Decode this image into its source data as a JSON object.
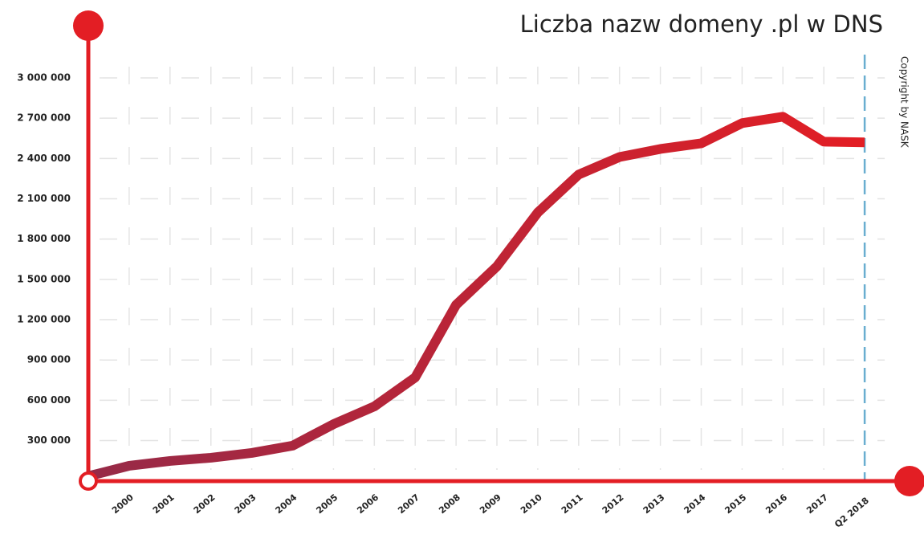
{
  "chart_data": {
    "type": "line",
    "title": "Liczba nazw domeny .pl w DNS",
    "annotation": "Copyright by NASK",
    "categories": [
      null,
      "2000",
      "2001",
      "2002",
      "2003",
      "2004",
      "2005",
      "2006",
      "2007",
      "2008",
      "2009",
      "2010",
      "2011",
      "2012",
      "2013",
      "2014",
      "2015",
      "2016",
      "2017",
      "Q2 2018"
    ],
    "series": [
      {
        "name": "Liczba nazw domeny .pl",
        "color": "#e31e24",
        "values": [
          35000,
          112000,
          148000,
          172000,
          208000,
          262000,
          422000,
          554000,
          770000,
          1310000,
          1597000,
          1998000,
          2280000,
          2411000,
          2471000,
          2513000,
          2663000,
          2711000,
          2525000,
          2520000
        ]
      }
    ],
    "ylim": [
      0,
      3000000
    ],
    "yticks": [
      {
        "value": 300000,
        "label": "300 000"
      },
      {
        "value": 600000,
        "label": "600 000"
      },
      {
        "value": 900000,
        "label": "900 000"
      },
      {
        "value": 1200000,
        "label": "1 200 000"
      },
      {
        "value": 1500000,
        "label": "1 500 000"
      },
      {
        "value": 1800000,
        "label": "1 800 000"
      },
      {
        "value": 2100000,
        "label": "2 100 000"
      },
      {
        "value": 2400000,
        "label": "2 400 000"
      },
      {
        "value": 2700000,
        "label": "2 700 000"
      },
      {
        "value": 3000000,
        "label": "3 000 000"
      }
    ],
    "grid": true
  }
}
